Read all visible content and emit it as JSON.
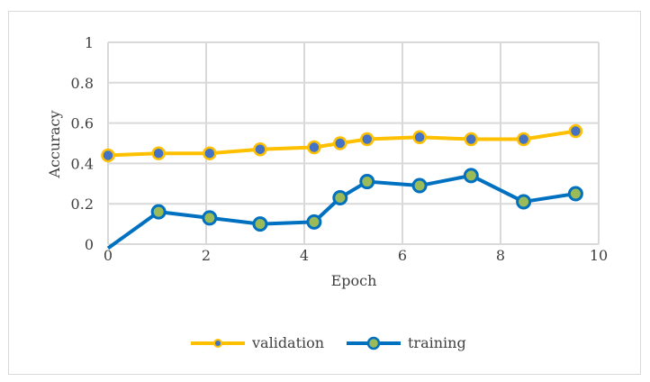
{
  "chart_data": {
    "type": "line",
    "title": "",
    "xlabel": "Epoch",
    "ylabel": "Accuracy",
    "xlim": [
      0,
      10
    ],
    "ylim": [
      0,
      1
    ],
    "xticks": [
      "0",
      "2",
      "4",
      "6",
      "8",
      "10"
    ],
    "yticks": [
      "0",
      "0.2",
      "0.4",
      "0.6",
      "0.8",
      "1"
    ],
    "grid": true,
    "legend_position": "bottom",
    "series": [
      {
        "name": "validation",
        "line_color": "#FFC000",
        "marker_fill": "#4472C4",
        "marker_edge": "#FFC000",
        "x": [
          0,
          1.03,
          2.07,
          3.1,
          4.2,
          4.73,
          5.28,
          6.35,
          7.4,
          8.47,
          9.53
        ],
        "y": [
          0.44,
          0.45,
          0.45,
          0.47,
          0.48,
          0.5,
          0.52,
          0.53,
          0.52,
          0.52,
          0.56
        ]
      },
      {
        "name": "training",
        "line_color": "#0070C0",
        "marker_fill": "#9BBB59",
        "marker_edge": "#0070C0",
        "x": [
          0,
          1.03,
          2.07,
          3.1,
          4.2,
          4.73,
          5.28,
          6.35,
          7.4,
          8.47,
          9.53
        ],
        "y": [
          -0.02,
          0.16,
          0.13,
          0.1,
          0.11,
          0.23,
          0.31,
          0.29,
          0.34,
          0.21,
          0.25
        ]
      }
    ]
  }
}
